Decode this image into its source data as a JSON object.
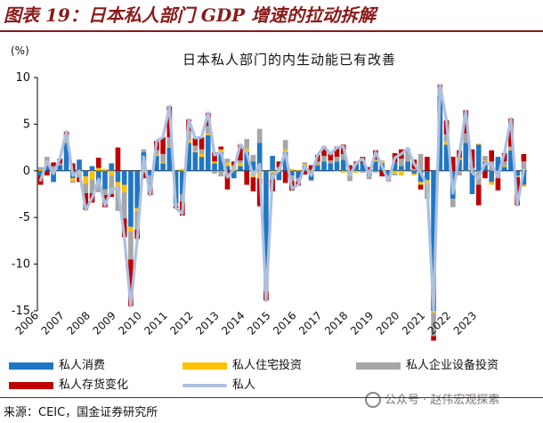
{
  "header": {
    "title": "图表 19：日本私人部门 GDP 增速的拉动拆解"
  },
  "footer": {
    "source": "来源：CEIC，国金证券研究所",
    "watermark": "公众号 · 赵伟宏观探索"
  },
  "colors": {
    "consumption": "#1F77C4",
    "housing": "#FFC000",
    "equipment": "#A6A6A6",
    "inventory": "#C00000",
    "private": "#AEC0E0"
  },
  "chart_data": {
    "type": "bar",
    "title": "日本私人部门的内生动能已有改善",
    "ylabel": "(%)",
    "ylim": [
      -15,
      10
    ],
    "yticks": [
      10,
      5,
      0,
      -5,
      -10,
      -15
    ],
    "xticks": [
      "2006",
      "2007",
      "2008",
      "2009",
      "2010",
      "2011",
      "2012",
      "2013",
      "2014",
      "2015",
      "2016",
      "2017",
      "2018",
      "2019",
      "2020",
      "2021",
      "2022",
      "2023"
    ],
    "x_start": "2006Q1",
    "series": [
      {
        "name": "私人消费",
        "key": "consumption",
        "kind": "bar",
        "values": [
          -0.5,
          0.8,
          -1.2,
          0.6,
          3.0,
          -0.8,
          1.2,
          -0.6,
          0.5,
          -1.5,
          -2.0,
          0.8,
          -1.2,
          -1.5,
          -6.0,
          -4.0,
          2.0,
          -0.5,
          1.6,
          0.8,
          2.5,
          -3.5,
          -2.5,
          3.0,
          2.0,
          1.5,
          3.8,
          0.8,
          2.0,
          0.5,
          -0.8,
          0.5,
          2.0,
          1.0,
          3.0,
          -10.5,
          1.6,
          -1.0,
          2.0,
          -0.5,
          -0.8,
          0.5,
          -1.0,
          0.6,
          1.0,
          0.8,
          1.0,
          1.2,
          -0.2,
          0.8,
          0.8,
          -0.5,
          1.0,
          0.8,
          -0.8,
          0.9,
          0.5,
          1.0,
          -0.3,
          -1.2,
          -1.0,
          -15.0,
          8.0,
          2.8,
          -3.0,
          1.2,
          3.0,
          -2.5,
          2.8,
          1.0,
          -1.2,
          1.5,
          0.4,
          2.2,
          -0.5,
          -1.5
        ]
      },
      {
        "name": "私人住宅投资",
        "key": "housing",
        "kind": "bar",
        "values": [
          0.1,
          0.2,
          0.1,
          0.0,
          0.2,
          -0.3,
          -0.4,
          -0.8,
          -0.9,
          0.3,
          0.2,
          -0.5,
          -0.6,
          -0.8,
          -0.5,
          -0.3,
          -0.2,
          0.0,
          0.2,
          0.1,
          0.1,
          0.0,
          0.2,
          0.3,
          0.1,
          0.3,
          0.2,
          0.2,
          0.3,
          0.4,
          0.4,
          0.3,
          0.4,
          -0.7,
          -0.8,
          -0.9,
          -0.2,
          0.2,
          0.3,
          0.2,
          0.1,
          0.2,
          0.1,
          0.1,
          0.0,
          0.0,
          -0.1,
          -0.2,
          -0.3,
          -0.2,
          0.0,
          0.1,
          0.2,
          0.2,
          -0.1,
          -0.3,
          -0.5,
          0.0,
          -0.2,
          -0.3,
          -0.5,
          -0.2,
          0.0,
          0.3,
          0.0,
          0.2,
          -0.1,
          0.0,
          0.1,
          0.1,
          -0.3,
          0.0,
          0.1,
          0.1,
          0.0,
          -0.2
        ]
      },
      {
        "name": "私人企业设备投资",
        "key": "equipment",
        "kind": "bar",
        "values": [
          0.3,
          0.5,
          0.4,
          0.2,
          0.6,
          -0.2,
          -0.3,
          -1.0,
          -1.5,
          -0.8,
          -0.6,
          -2.0,
          -2.5,
          -2.8,
          -3.0,
          -2.0,
          0.3,
          -0.8,
          0.4,
          0.9,
          1.0,
          -0.3,
          -0.8,
          1.0,
          0.6,
          0.5,
          0.8,
          -0.3,
          -0.6,
          0.4,
          0.2,
          0.3,
          1.0,
          0.7,
          1.5,
          -1.5,
          -0.7,
          0.2,
          1.0,
          -0.6,
          -0.4,
          0.2,
          -0.1,
          0.3,
          0.6,
          0.3,
          0.5,
          0.6,
          -0.6,
          0.0,
          -0.2,
          -0.4,
          -0.2,
          0.1,
          -0.1,
          -0.2,
          0.8,
          1.4,
          0.2,
          1.8,
          -1.5,
          -2.5,
          1.0,
          0.8,
          -0.9,
          -0.5,
          1.0,
          0.3,
          -1.5,
          0.5,
          1.0,
          -0.8,
          0.5,
          0.3,
          -0.2,
          1.0
        ]
      },
      {
        "name": "私人存货变化",
        "key": "inventory",
        "kind": "bar",
        "values": [
          -1.0,
          -0.5,
          0.4,
          0.5,
          0.4,
          0.8,
          -0.5,
          -1.8,
          -1.0,
          1.1,
          -1.3,
          -0.3,
          2.5,
          -2.0,
          -5.0,
          -1.0,
          -0.6,
          -1.3,
          1.0,
          1.8,
          3.3,
          -0.2,
          -1.5,
          1.2,
          0.8,
          1.3,
          1.4,
          1.0,
          0.3,
          -2.0,
          0.4,
          1.7,
          -1.5,
          -1.5,
          -3.0,
          -1.0,
          -1.3,
          0.6,
          -1.3,
          -1.0,
          -0.4,
          -0.4,
          0.5,
          0.7,
          1.0,
          0.7,
          1.1,
          1.0,
          0.6,
          0.2,
          0.7,
          0.3,
          1.0,
          -0.6,
          -0.1,
          1.0,
          1.0,
          0.0,
          1.0,
          -0.5,
          1.5,
          -0.5,
          0.2,
          1.5,
          1.5,
          0.8,
          2.5,
          2.0,
          -2.2,
          -0.8,
          1.2,
          -1.3,
          0.9,
          3.0,
          -3.0,
          0.8
        ]
      },
      {
        "name": "私人",
        "key": "private",
        "kind": "line",
        "values": [
          -1.0,
          1.0,
          -0.3,
          1.3,
          4.2,
          -0.5,
          0.0,
          -4.2,
          -2.9,
          -0.9,
          -3.7,
          -2.0,
          -1.8,
          -7.1,
          -14.5,
          -7.3,
          1.5,
          -2.6,
          3.2,
          3.6,
          6.9,
          -4.0,
          -4.6,
          5.5,
          3.5,
          3.6,
          6.2,
          1.7,
          2.0,
          -0.7,
          0.2,
          2.8,
          1.9,
          -0.5,
          0.7,
          -13.9,
          -0.6,
          0.0,
          2.0,
          -1.9,
          -1.5,
          0.5,
          -0.5,
          1.7,
          2.6,
          1.8,
          2.5,
          2.6,
          -0.5,
          0.8,
          1.3,
          -0.5,
          2.0,
          0.5,
          -1.1,
          1.4,
          1.8,
          2.4,
          0.7,
          -0.2,
          -1.5,
          -18.2,
          9.2,
          5.4,
          -2.4,
          1.7,
          6.4,
          -0.2,
          -0.8,
          0.8,
          0.7,
          -0.6,
          1.9,
          5.6,
          -3.7,
          0.1
        ]
      }
    ]
  }
}
